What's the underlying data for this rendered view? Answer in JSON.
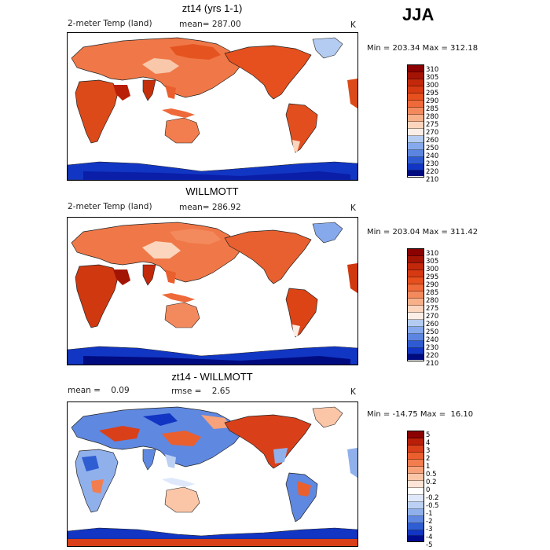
{
  "season": "JJA",
  "panels": [
    {
      "title": "zt14 (yrs 1-1)",
      "left_label": "2-meter Temp (land)",
      "mid_label": "mean= 287.00",
      "unit": "K",
      "minmax": "Min = 203.34 Max = 312.18",
      "levels": [
        "310",
        "305",
        "300",
        "295",
        "290",
        "285",
        "280",
        "275",
        "270",
        "260",
        "250",
        "240",
        "230",
        "220",
        "210"
      ]
    },
    {
      "title": "WILLMOTT",
      "left_label": "2-meter Temp (land)",
      "mid_label": "mean= 286.92",
      "unit": "K",
      "minmax": "Min = 203.04 Max = 311.42",
      "levels": [
        "310",
        "305",
        "300",
        "295",
        "290",
        "285",
        "280",
        "275",
        "270",
        "260",
        "250",
        "240",
        "230",
        "220",
        "210"
      ]
    },
    {
      "title": "zt14 - WILLMOTT",
      "left_label": "mean =    0.09",
      "mid_label": "rmse =    2.65",
      "unit": "K",
      "minmax": "Min = -14.75 Max =  16.10",
      "levels": [
        "5",
        "4",
        "3",
        "2",
        "1",
        "0.5",
        "0.2",
        "0",
        "-0.2",
        "-0.5",
        "-1",
        "-2",
        "-3",
        "-4",
        "-5"
      ]
    }
  ],
  "colors": {
    "abs_scale": [
      "#8b0000",
      "#a31404",
      "#c2280a",
      "#d63a12",
      "#e5501e",
      "#ee6a3a",
      "#f38a5e",
      "#f8b08a",
      "#fbd5bd",
      "#fbeee6",
      "#d8e5f8",
      "#b4ccf2",
      "#86a9ec",
      "#5b85e0",
      "#2f5bd2",
      "#1236c4",
      "#0a1ea8",
      "#000b80"
    ],
    "diff_scale": [
      "#8b0000",
      "#b81e08",
      "#d9401a",
      "#ea5f2e",
      "#f27d4e",
      "#f7a27a",
      "#fbc6a8",
      "#fde4d6",
      "#ffffff",
      "#dfe8fb",
      "#bcd0f4",
      "#90b0ec",
      "#5f88e0",
      "#2f5dd2",
      "#1235c4",
      "#000b90"
    ]
  }
}
